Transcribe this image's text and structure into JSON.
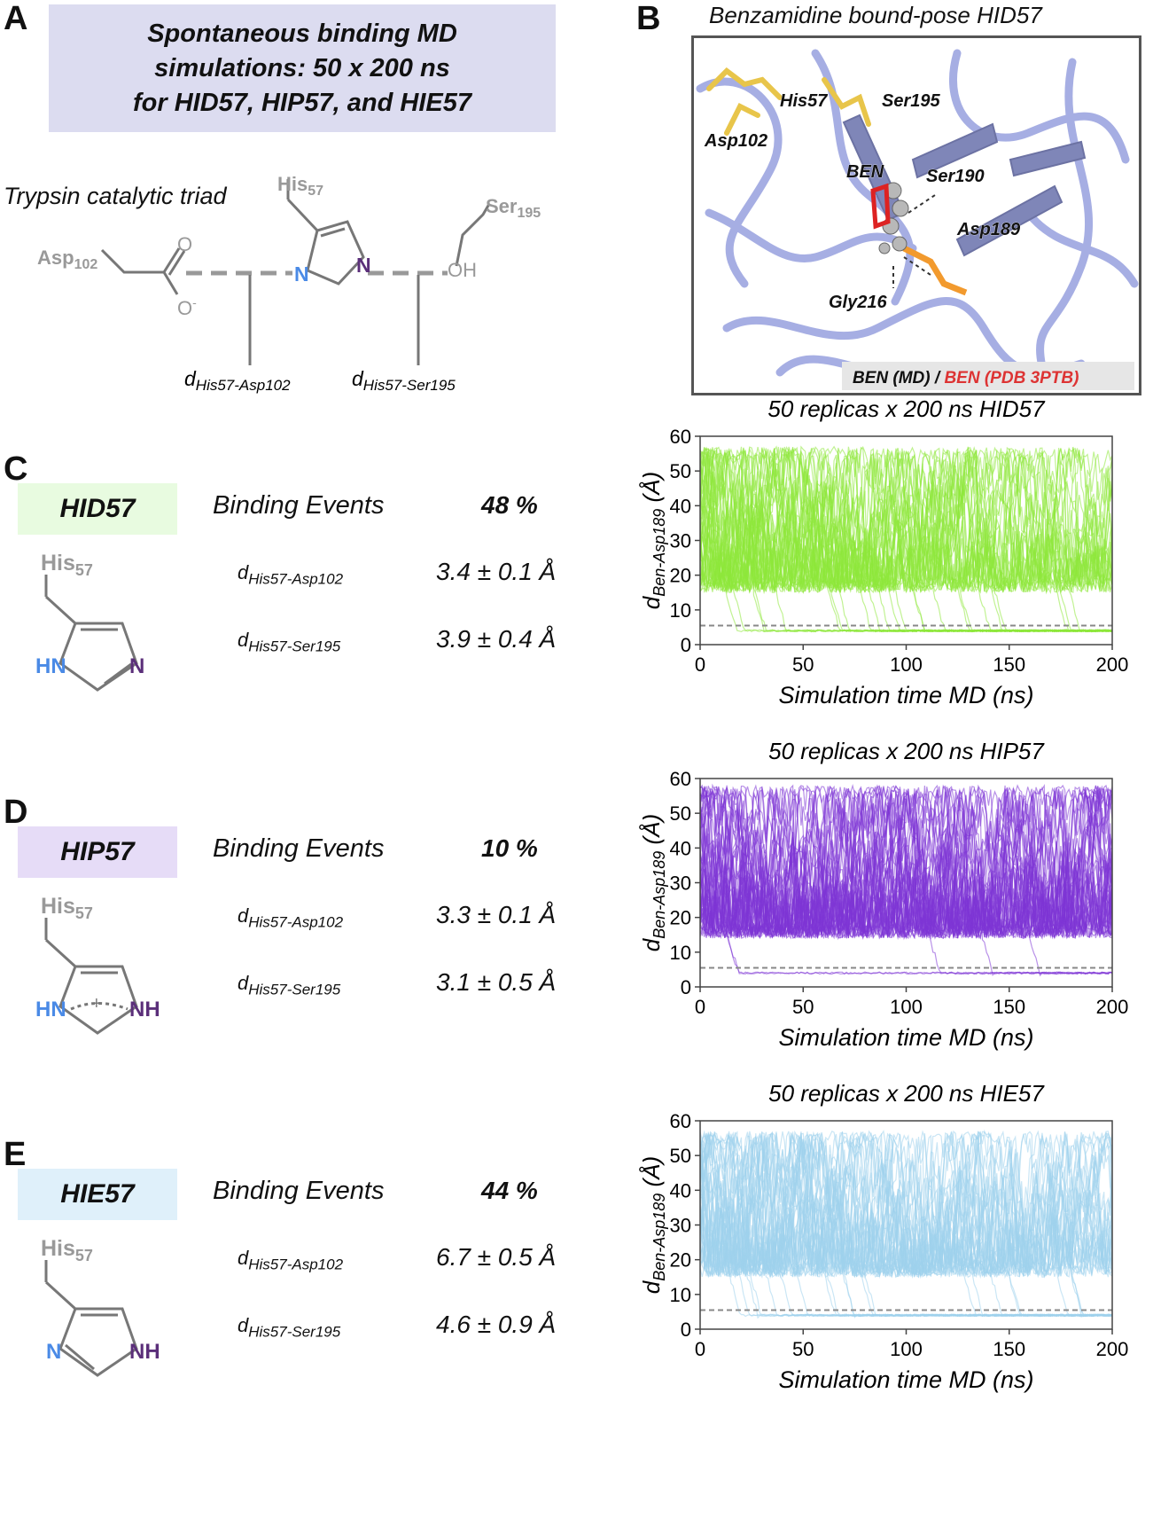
{
  "panels": {
    "A": {
      "label": "A",
      "title_lines": [
        "Spontaneous binding MD",
        "simulations: 50 x 200 ns",
        "for HID57, HIP57, and HIE57"
      ],
      "triad_caption": "Trypsin catalytic triad",
      "residues": {
        "asp": "Asp",
        "asp_sub": "102",
        "his": "His",
        "his_sub": "57",
        "ser": "Ser",
        "ser_sub": "195"
      },
      "atoms": {
        "o_top": "O",
        "o_minus": "O",
        "minus": "-",
        "n1": "N",
        "n2": "N",
        "oh": "OH"
      },
      "dist1": {
        "main": "d",
        "sub": "His57-Asp102"
      },
      "dist2": {
        "main": "d",
        "sub": "His57-Ser195"
      }
    },
    "B": {
      "label": "B",
      "title": "Benzamidine bound-pose HID57",
      "residue_labels": [
        "His57",
        "Ser195",
        "Asp102",
        "BEN",
        "Ser190",
        "Asp189",
        "Gly216"
      ],
      "legend_md": "BEN (MD)",
      "legend_sep": " / ",
      "legend_pdb": "BEN (PDB 3PTB)"
    }
  },
  "states": [
    {
      "label": "C",
      "name": "HID57",
      "box_color": "#e8fbe0",
      "binding_label": "Binding Events",
      "binding_pct": "48 %",
      "d1_main": "d",
      "d1_sub": "His57-Asp102",
      "d1_val": "3.4 ± 0.1 Å",
      "d2_main": "d",
      "d2_sub": "His57-Ser195",
      "d2_val": "3.9 ± 0.4 Å",
      "his": "His",
      "his_sub": "57",
      "atom_left": "HN",
      "atom_right": "N",
      "charge": "+"
    },
    {
      "label": "D",
      "name": "HIP57",
      "box_color": "#e6dcf7",
      "binding_label": "Binding Events",
      "binding_pct": "10 %",
      "d1_main": "d",
      "d1_sub": "His57-Asp102",
      "d1_val": "3.3 ± 0.1 Å",
      "d2_main": "d",
      "d2_sub": "His57-Ser195",
      "d2_val": "3.1 ± 0.5 Å",
      "his": "His",
      "his_sub": "57",
      "atom_left": "HN",
      "atom_right": "NH",
      "charge": "+"
    },
    {
      "label": "E",
      "name": "HIE57",
      "box_color": "#dff0fa",
      "binding_label": "Binding Events",
      "binding_pct": "44 %",
      "d1_main": "d",
      "d1_sub": "His57-Asp102",
      "d1_val": "6.7 ± 0.5 Å",
      "d2_main": "d",
      "d2_sub": "His57-Ser195",
      "d2_val": "4.6 ± 0.9 Å",
      "his": "His",
      "his_sub": "57",
      "atom_left": "N",
      "atom_right": "NH",
      "charge": "+"
    }
  ],
  "chart_data": [
    {
      "type": "line",
      "title": "50 replicas x 200 ns HID57",
      "xlabel": "Simulation time MD (ns)",
      "ylabel_main": "d",
      "ylabel_sub": "Ben-Asp189",
      "ylabel_unit": " (Å)",
      "xlim": [
        0,
        200
      ],
      "ylim": [
        0,
        60
      ],
      "xticks": [
        0,
        50,
        100,
        150,
        200
      ],
      "yticks": [
        0,
        10,
        20,
        30,
        40,
        50,
        60
      ],
      "color": "#8ee83a",
      "threshold": 5.5,
      "replicas": 50,
      "bound_fraction": 0.48,
      "bound_level": 4,
      "unbound_band": [
        15,
        57
      ],
      "baseline": 17
    },
    {
      "type": "line",
      "title": "50 replicas x 200 ns HIP57",
      "xlabel": "Simulation time MD (ns)",
      "ylabel_main": "d",
      "ylabel_sub": "Ben-Asp189",
      "ylabel_unit": " (Å)",
      "xlim": [
        0,
        200
      ],
      "ylim": [
        0,
        60
      ],
      "xticks": [
        0,
        50,
        100,
        150,
        200
      ],
      "yticks": [
        0,
        10,
        20,
        30,
        40,
        50,
        60
      ],
      "color": "#7d35d6",
      "threshold": 5.5,
      "replicas": 50,
      "bound_fraction": 0.1,
      "bound_level": 4,
      "unbound_band": [
        14,
        58
      ],
      "baseline": 16
    },
    {
      "type": "line",
      "title": "50 replicas x 200 ns HIE57",
      "xlabel": "Simulation time MD (ns)",
      "ylabel_main": "d",
      "ylabel_sub": "Ben-Asp189",
      "ylabel_unit": " (Å)",
      "xlim": [
        0,
        200
      ],
      "ylim": [
        0,
        60
      ],
      "xticks": [
        0,
        50,
        100,
        150,
        200
      ],
      "yticks": [
        0,
        10,
        20,
        30,
        40,
        50,
        60
      ],
      "color": "#9fd2ec",
      "threshold": 5.5,
      "replicas": 50,
      "bound_fraction": 0.44,
      "bound_level": 4,
      "unbound_band": [
        15,
        57
      ],
      "baseline": 17
    }
  ]
}
